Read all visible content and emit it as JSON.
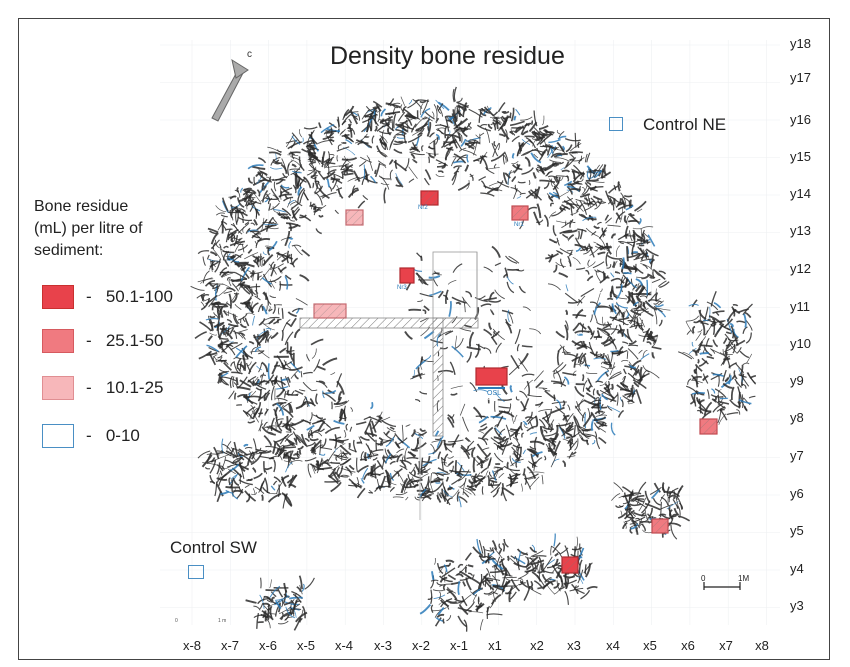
{
  "title": "Density bone residue",
  "control_ne_label": "Control NE",
  "control_sw_label": "Control SW",
  "north_arrow_letter": "c",
  "legend": {
    "title_lines": [
      "Bone residue",
      "(mL) per litre of",
      "sediment:"
    ],
    "items": [
      {
        "label": "50.1-100",
        "color": "#e8424b",
        "border": "#c9302f"
      },
      {
        "label": "25.1-50",
        "color": "#f07a80",
        "border": "#d65a5f"
      },
      {
        "label": "10.1-25",
        "color": "#f7b7ba",
        "border": "#e08e92"
      },
      {
        "label": "0-10",
        "color": "#ffffff",
        "border": "#4a8fc4"
      }
    ],
    "dash": "-"
  },
  "y_axis": [
    "y18",
    "y17",
    "y16",
    "y15",
    "y14",
    "y13",
    "y12",
    "y11",
    "y10",
    "y9",
    "y8",
    "y7",
    "y6",
    "y5",
    "y4",
    "y3"
  ],
  "x_axis": [
    "x-8",
    "x-7",
    "x-6",
    "x-5",
    "x-4",
    "x-3",
    "x-2",
    "x-1",
    "x1",
    "x2",
    "x3",
    "x4",
    "x5",
    "x6",
    "x7",
    "x8"
  ],
  "scale_bar": {
    "start": "0",
    "end": "1M"
  },
  "sample_labels": {
    "n2": "Nr2",
    "n1": "Nr1",
    "n3": "Nr3",
    "osl": "OSL"
  },
  "small_scale_text": {
    "zero": "0",
    "one_m": "1 m"
  },
  "colors": {
    "high": "#e8424b",
    "mid": "#f07a80",
    "low": "#f7b7ba",
    "none": "#ffffff",
    "outline_blue": "#4a8fc4",
    "bone": "#2b2b2b",
    "label_blue": "#2a7ab8"
  }
}
